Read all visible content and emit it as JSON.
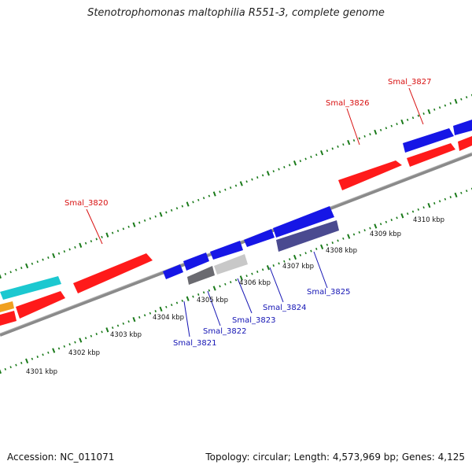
{
  "title": "Stenotrophomonas maltophilia R551-3, complete genome",
  "accession_label": "Accession: NC_011071",
  "summary": "Topology: circular; Length: 4,573,969 bp; Genes: 4,125",
  "colors": {
    "forward_red": "#ff1a1a",
    "reverse_blue": "#1616e6",
    "cyan": "#1cc8d0",
    "orange": "#f0a020",
    "dark_gray": "#6a6a70",
    "light_gray": "#c8c8c8",
    "slate": "#4a4a90",
    "label_red": "#d81010",
    "label_blue": "#1414b4",
    "tick_green": "#1a7a1a",
    "backbone": "#8a8a8a"
  },
  "scale_labels": [
    "4301 kbp",
    "4302 kbp",
    "4303 kbp",
    "4304 kbp",
    "4305 kbp",
    "4306 kbp",
    "4307 kbp",
    "4308 kbp",
    "4309 kbp",
    "4310 kbp"
  ],
  "upper_gene_labels": [
    "Smal_3820",
    "Smal_3826",
    "Smal_3827"
  ],
  "lower_gene_labels": [
    "Smal_3821",
    "Smal_3822",
    "Smal_3823",
    "Smal_3824",
    "Smal_3825"
  ]
}
